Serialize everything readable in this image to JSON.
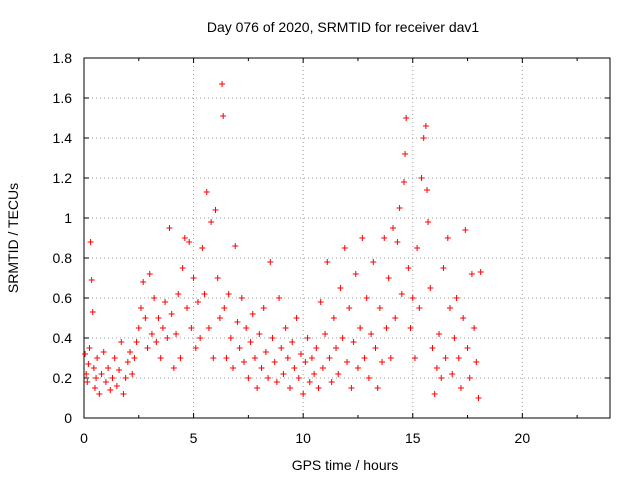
{
  "chart_data": {
    "type": "scatter",
    "title": "Day 076 of 2020, SRMTID for receiver dav1",
    "xlabel": "GPS time / hours",
    "ylabel": "SRMTID / TECUs",
    "xlim": [
      0,
      24
    ],
    "ylim": [
      0,
      1.8
    ],
    "xticks": [
      0,
      5,
      10,
      15,
      20
    ],
    "yticks": [
      0,
      0.2,
      0.4,
      0.6,
      0.8,
      1,
      1.2,
      1.4,
      1.6,
      1.8
    ],
    "ytick_labels": [
      "0",
      "0.2",
      "0.4",
      "0.6",
      "0.8",
      "1",
      "1.2",
      "1.4",
      "1.6",
      "1.8"
    ],
    "grid": true,
    "marker": "+",
    "color": "#ff0000",
    "series": [
      {
        "name": "dav1",
        "points": [
          [
            0.05,
            0.32
          ],
          [
            0.1,
            0.22
          ],
          [
            0.15,
            0.18
          ],
          [
            0.2,
            0.27
          ],
          [
            0.25,
            0.35
          ],
          [
            0.3,
            0.88
          ],
          [
            0.35,
            0.69
          ],
          [
            0.4,
            0.53
          ],
          [
            0.45,
            0.25
          ],
          [
            0.5,
            0.15
          ],
          [
            0.55,
            0.2
          ],
          [
            0.6,
            0.3
          ],
          [
            0.7,
            0.12
          ],
          [
            0.8,
            0.22
          ],
          [
            0.9,
            0.33
          ],
          [
            1.0,
            0.18
          ],
          [
            1.1,
            0.25
          ],
          [
            1.2,
            0.14
          ],
          [
            1.3,
            0.2
          ],
          [
            1.4,
            0.3
          ],
          [
            1.5,
            0.16
          ],
          [
            1.6,
            0.24
          ],
          [
            1.7,
            0.38
          ],
          [
            1.8,
            0.12
          ],
          [
            1.9,
            0.2
          ],
          [
            2.0,
            0.28
          ],
          [
            2.1,
            0.33
          ],
          [
            2.2,
            0.22
          ],
          [
            2.3,
            0.3
          ],
          [
            2.4,
            0.38
          ],
          [
            2.5,
            0.45
          ],
          [
            2.6,
            0.55
          ],
          [
            2.7,
            0.68
          ],
          [
            2.8,
            0.5
          ],
          [
            2.9,
            0.35
          ],
          [
            3.0,
            0.72
          ],
          [
            3.1,
            0.42
          ],
          [
            3.2,
            0.6
          ],
          [
            3.3,
            0.38
          ],
          [
            3.4,
            0.5
          ],
          [
            3.5,
            0.3
          ],
          [
            3.6,
            0.45
          ],
          [
            3.7,
            0.58
          ],
          [
            3.8,
            0.4
          ],
          [
            3.9,
            0.95
          ],
          [
            4.0,
            0.52
          ],
          [
            4.1,
            0.25
          ],
          [
            4.2,
            0.42
          ],
          [
            4.3,
            0.62
          ],
          [
            4.4,
            0.3
          ],
          [
            4.5,
            0.75
          ],
          [
            4.6,
            0.9
          ],
          [
            4.7,
            0.55
          ],
          [
            4.8,
            0.88
          ],
          [
            4.9,
            0.45
          ],
          [
            5.0,
            0.7
          ],
          [
            5.1,
            0.35
          ],
          [
            5.2,
            0.58
          ],
          [
            5.3,
            0.4
          ],
          [
            5.4,
            0.85
          ],
          [
            5.5,
            0.62
          ],
          [
            5.6,
            1.13
          ],
          [
            5.7,
            0.45
          ],
          [
            5.8,
            0.98
          ],
          [
            5.9,
            0.3
          ],
          [
            6.0,
            1.04
          ],
          [
            6.1,
            0.7
          ],
          [
            6.2,
            0.5
          ],
          [
            6.3,
            1.67
          ],
          [
            6.35,
            1.51
          ],
          [
            6.4,
            0.55
          ],
          [
            6.5,
            0.3
          ],
          [
            6.6,
            0.62
          ],
          [
            6.7,
            0.4
          ],
          [
            6.8,
            0.25
          ],
          [
            6.9,
            0.86
          ],
          [
            7.0,
            0.48
          ],
          [
            7.1,
            0.35
          ],
          [
            7.2,
            0.6
          ],
          [
            7.3,
            0.28
          ],
          [
            7.4,
            0.45
          ],
          [
            7.5,
            0.2
          ],
          [
            7.6,
            0.38
          ],
          [
            7.7,
            0.52
          ],
          [
            7.8,
            0.3
          ],
          [
            7.9,
            0.15
          ],
          [
            8.0,
            0.42
          ],
          [
            8.1,
            0.25
          ],
          [
            8.2,
            0.55
          ],
          [
            8.3,
            0.33
          ],
          [
            8.4,
            0.2
          ],
          [
            8.5,
            0.78
          ],
          [
            8.6,
            0.4
          ],
          [
            8.7,
            0.28
          ],
          [
            8.8,
            0.18
          ],
          [
            8.9,
            0.6
          ],
          [
            9.0,
            0.35
          ],
          [
            9.1,
            0.22
          ],
          [
            9.2,
            0.45
          ],
          [
            9.3,
            0.3
          ],
          [
            9.4,
            0.15
          ],
          [
            9.5,
            0.38
          ],
          [
            9.6,
            0.25
          ],
          [
            9.7,
            0.5
          ],
          [
            9.8,
            0.2
          ],
          [
            9.9,
            0.32
          ],
          [
            10.0,
            0.12
          ],
          [
            10.1,
            0.28
          ],
          [
            10.2,
            0.4
          ],
          [
            10.3,
            0.18
          ],
          [
            10.4,
            0.3
          ],
          [
            10.5,
            0.22
          ],
          [
            10.6,
            0.35
          ],
          [
            10.7,
            0.15
          ],
          [
            10.8,
            0.58
          ],
          [
            10.9,
            0.25
          ],
          [
            11.0,
            0.42
          ],
          [
            11.1,
            0.78
          ],
          [
            11.2,
            0.3
          ],
          [
            11.3,
            0.18
          ],
          [
            11.4,
            0.5
          ],
          [
            11.5,
            0.35
          ],
          [
            11.6,
            0.22
          ],
          [
            11.7,
            0.65
          ],
          [
            11.8,
            0.4
          ],
          [
            11.9,
            0.85
          ],
          [
            12.0,
            0.28
          ],
          [
            12.1,
            0.55
          ],
          [
            12.2,
            0.15
          ],
          [
            12.3,
            0.38
          ],
          [
            12.4,
            0.72
          ],
          [
            12.5,
            0.25
          ],
          [
            12.6,
            0.45
          ],
          [
            12.7,
            0.9
          ],
          [
            12.8,
            0.3
          ],
          [
            12.9,
            0.6
          ],
          [
            13.0,
            0.2
          ],
          [
            13.1,
            0.42
          ],
          [
            13.2,
            0.78
          ],
          [
            13.3,
            0.35
          ],
          [
            13.4,
            0.15
          ],
          [
            13.5,
            0.55
          ],
          [
            13.6,
            0.28
          ],
          [
            13.7,
            0.9
          ],
          [
            13.8,
            0.45
          ],
          [
            13.9,
            0.7
          ],
          [
            14.0,
            0.3
          ],
          [
            14.1,
            0.95
          ],
          [
            14.2,
            0.5
          ],
          [
            14.3,
            0.88
          ],
          [
            14.4,
            1.05
          ],
          [
            14.5,
            0.62
          ],
          [
            14.6,
            1.18
          ],
          [
            14.65,
            1.32
          ],
          [
            14.7,
            1.5
          ],
          [
            14.8,
            0.75
          ],
          [
            14.9,
            0.45
          ],
          [
            15.0,
            0.6
          ],
          [
            15.1,
            0.3
          ],
          [
            15.2,
            0.85
          ],
          [
            15.3,
            0.55
          ],
          [
            15.4,
            1.2
          ],
          [
            15.5,
            1.4
          ],
          [
            15.6,
            1.46
          ],
          [
            15.65,
            1.14
          ],
          [
            15.7,
            0.98
          ],
          [
            15.8,
            0.65
          ],
          [
            15.9,
            0.35
          ],
          [
            16.0,
            0.12
          ],
          [
            16.1,
            0.25
          ],
          [
            16.2,
            0.42
          ],
          [
            16.3,
            0.2
          ],
          [
            16.4,
            0.75
          ],
          [
            16.5,
            0.3
          ],
          [
            16.6,
            0.9
          ],
          [
            16.7,
            0.55
          ],
          [
            16.8,
            0.22
          ],
          [
            16.9,
            0.4
          ],
          [
            17.0,
            0.6
          ],
          [
            17.1,
            0.3
          ],
          [
            17.2,
            0.15
          ],
          [
            17.3,
            0.5
          ],
          [
            17.4,
            0.94
          ],
          [
            17.5,
            0.35
          ],
          [
            17.6,
            0.2
          ],
          [
            17.7,
            0.72
          ],
          [
            17.8,
            0.45
          ],
          [
            17.9,
            0.28
          ],
          [
            18.0,
            0.1
          ],
          [
            18.1,
            0.73
          ]
        ]
      }
    ]
  }
}
